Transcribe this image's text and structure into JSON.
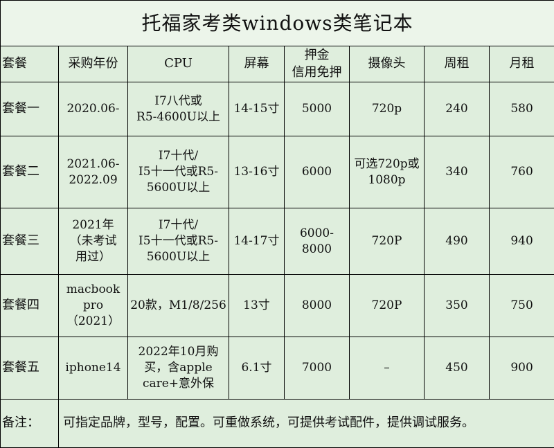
{
  "title": "托福家考类windows类笔记本",
  "headers": [
    "套餐",
    "采购年份",
    "CPU",
    "屏幕",
    [
      "押金",
      "信用免押"
    ],
    "摄像头",
    "周租",
    "月租"
  ],
  "rows": [
    {
      "name": "套餐一",
      "year": [
        "2020.06-"
      ],
      "cpu": [
        "I7八代或",
        "R5-4600U以上"
      ],
      "screen": [
        "14-15寸"
      ],
      "deposit": [
        "5000"
      ],
      "camera": [
        "720p"
      ],
      "weekly": "240",
      "monthly": "580"
    },
    {
      "name": "套餐二",
      "year": [
        "2021.06-",
        "2022.09"
      ],
      "cpu": [
        "I7十代/",
        "I5十一代或R5-",
        "5600U以上"
      ],
      "screen": [
        "13-16寸"
      ],
      "deposit": [
        "6000"
      ],
      "camera": [
        "可选720p或",
        "1080p"
      ],
      "weekly": "340",
      "monthly": "760"
    },
    {
      "name": "套餐三",
      "year": [
        "2021年",
        "（未考试",
        "用过）"
      ],
      "cpu": [
        "I7十代/",
        "I5十一代或R5-",
        "5600U以上"
      ],
      "screen": [
        "14-17寸"
      ],
      "deposit": [
        "6000-",
        "8000"
      ],
      "camera": [
        "720P"
      ],
      "weekly": "490",
      "monthly": "940"
    },
    {
      "name": "套餐四",
      "year": [
        "macbook",
        "pro",
        "（2021）"
      ],
      "cpu": [
        "20款，M1/8/256"
      ],
      "screen": [
        "13寸"
      ],
      "deposit": [
        "8000"
      ],
      "camera": [
        "720P"
      ],
      "weekly": "350",
      "monthly": "750"
    },
    {
      "name": "套餐五",
      "year": [
        "iphone14"
      ],
      "cpu": [
        "2022年10月购",
        "买，含apple",
        "care+意外保"
      ],
      "screen": [
        "6.1寸"
      ],
      "deposit": [
        "7000"
      ],
      "camera": [
        "–"
      ],
      "weekly": "450",
      "monthly": "900"
    }
  ],
  "note": {
    "label": "备注：",
    "text": "可指定品牌，型号，配置。可重做系统，可提供考试配件，提供调试服务。"
  }
}
